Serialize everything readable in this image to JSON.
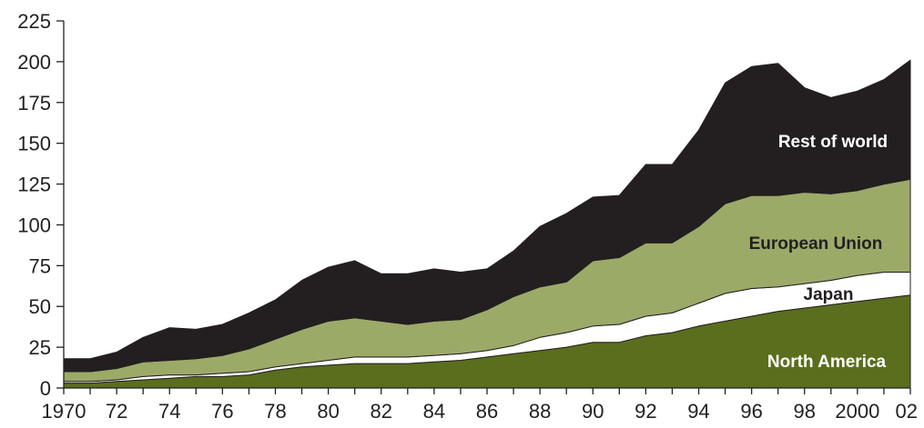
{
  "chart_data": {
    "type": "area",
    "stacked": true,
    "x": [
      1970,
      1971,
      1972,
      1973,
      1974,
      1975,
      1976,
      1977,
      1978,
      1979,
      1980,
      1981,
      1982,
      1983,
      1984,
      1985,
      1986,
      1987,
      1988,
      1989,
      1990,
      1991,
      1992,
      1993,
      1994,
      1995,
      1996,
      1997,
      1998,
      1999,
      2000,
      2001,
      2002
    ],
    "series": [
      {
        "name": "North America",
        "color": "#5a6e1e",
        "values": [
          3,
          3,
          4,
          5,
          6,
          7,
          7,
          8,
          11,
          13,
          14,
          15,
          15,
          15,
          16,
          17,
          19,
          21,
          23,
          25,
          28,
          28,
          32,
          34,
          38,
          41,
          44,
          47,
          49,
          51,
          53,
          55,
          57
        ]
      },
      {
        "name": "Japan",
        "color": "#ffffff",
        "values": [
          1,
          1,
          1,
          2,
          2,
          1,
          2,
          2,
          2,
          2,
          3,
          4,
          4,
          4,
          4,
          4,
          4,
          5,
          8,
          9,
          10,
          11,
          12,
          12,
          14,
          17,
          17,
          15,
          15,
          15,
          16,
          16,
          14
        ]
      },
      {
        "name": "European Union",
        "color": "#9caa68",
        "values": [
          6,
          6,
          7,
          9,
          9,
          10,
          11,
          14,
          17,
          21,
          24,
          24,
          22,
          20,
          21,
          21,
          25,
          30,
          31,
          31,
          40,
          41,
          45,
          43,
          47,
          55,
          57,
          56,
          56,
          53,
          52,
          54,
          57
        ]
      },
      {
        "name": "Rest of world",
        "color": "#231f20",
        "values": [
          8,
          8,
          10,
          15,
          20,
          18,
          19,
          22,
          24,
          30,
          33,
          35,
          29,
          31,
          32,
          29,
          25,
          28,
          37,
          42,
          39,
          38,
          48,
          48,
          59,
          74,
          79,
          81,
          64,
          59,
          61,
          64,
          73
        ]
      }
    ],
    "xtick_labels": [
      "1970",
      "72",
      "74",
      "76",
      "78",
      "80",
      "82",
      "84",
      "86",
      "88",
      "90",
      "92",
      "94",
      "96",
      "98",
      "2000",
      "02"
    ],
    "ytick_labels": [
      "0",
      "25",
      "50",
      "75",
      "100",
      "125",
      "150",
      "175",
      "200",
      "225"
    ],
    "ylim": [
      0,
      225
    ],
    "xlim": [
      1970,
      2002
    ],
    "grid": false,
    "legend": "inline labels"
  }
}
